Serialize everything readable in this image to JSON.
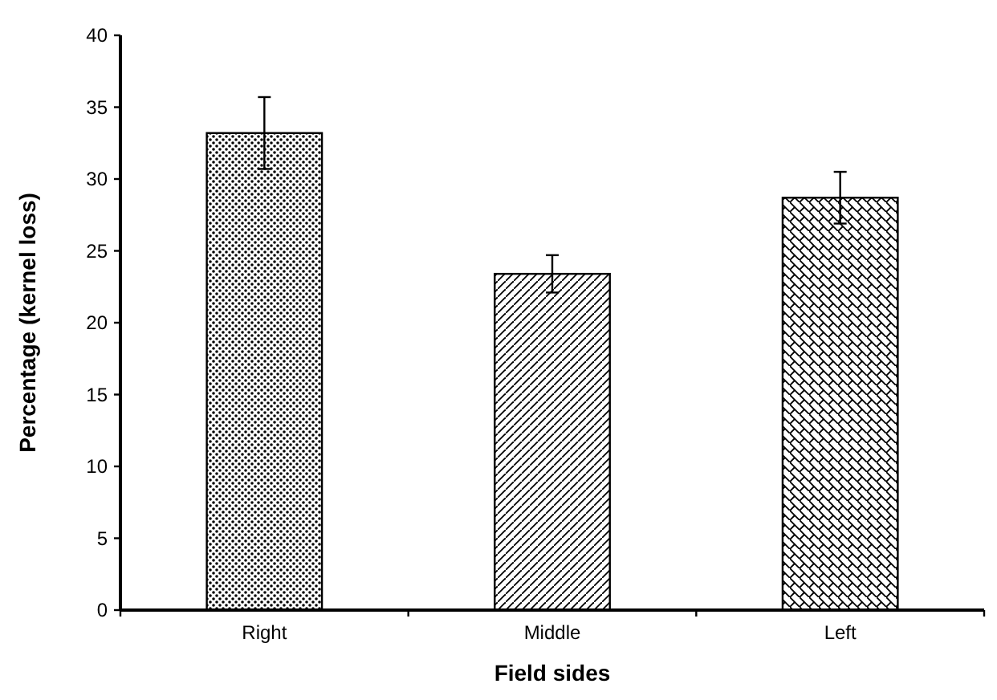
{
  "chart_data": {
    "type": "bar",
    "xlabel": "Field sides",
    "ylabel": "Percentage  (kernel loss)",
    "categories": [
      "Right",
      "Middle",
      "Left"
    ],
    "values": [
      33.2,
      23.4,
      28.7
    ],
    "errors": [
      2.5,
      1.3,
      1.8
    ],
    "color": "#000000",
    "ylim": [
      0,
      40
    ],
    "yticks": [
      0,
      5,
      10,
      15,
      20,
      25,
      30,
      35,
      40
    ],
    "grid": false
  }
}
